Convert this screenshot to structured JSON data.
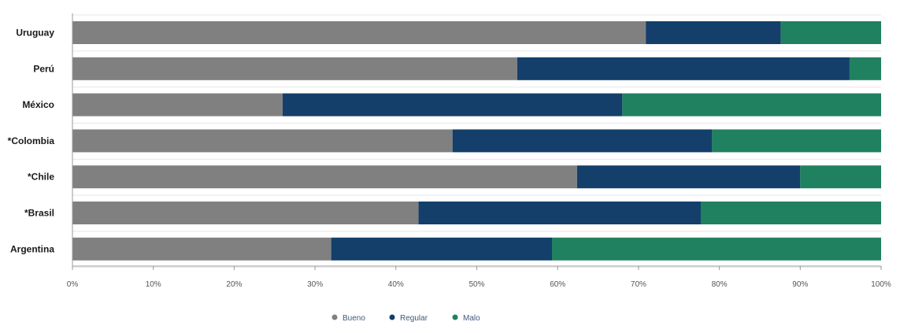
{
  "chart_data": {
    "type": "bar",
    "orientation": "horizontal",
    "stacked": true,
    "categories": [
      "Uruguay",
      "Perú",
      "México",
      "*Colombia",
      "*Chile",
      "*Brasil",
      "Argentina"
    ],
    "series": [
      {
        "name": "Bueno",
        "color": "#808080",
        "values": [
          70.9,
          55.0,
          26.0,
          47.0,
          62.4,
          42.8,
          32.0
        ]
      },
      {
        "name": "Regular",
        "color": "#133f6a",
        "values": [
          16.7,
          41.1,
          42.0,
          32.1,
          27.6,
          34.9,
          27.3
        ]
      },
      {
        "name": "Malo",
        "color": "#1f8160",
        "values": [
          12.4,
          3.9,
          32.0,
          20.9,
          10.0,
          22.3,
          40.7
        ]
      }
    ],
    "x_ticks": [
      "0%",
      "10%",
      "20%",
      "30%",
      "40%",
      "50%",
      "60%",
      "70%",
      "80%",
      "90%",
      "100%"
    ],
    "xlim": [
      0,
      100
    ],
    "grid": true,
    "legend_position": "bottom-center"
  }
}
